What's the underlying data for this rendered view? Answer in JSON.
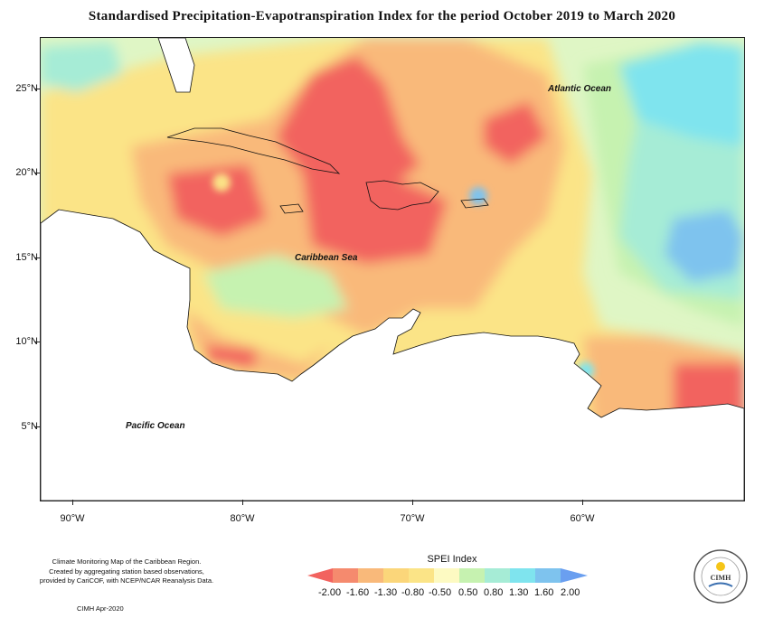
{
  "title": "Standardised Precipitation-Evapotranspiration Index for the period October 2019 to March 2020",
  "labels": {
    "atlantic": "Atlantic Ocean",
    "caribbean": "Caribbean Sea",
    "pacific": "Pacific Ocean"
  },
  "lat_ticks": [
    "25°N",
    "20°N",
    "15°N",
    "10°N",
    "5°N"
  ],
  "lon_ticks": [
    "90°W",
    "80°W",
    "70°W",
    "60°W"
  ],
  "legend": {
    "title": "SPEI Index",
    "values": [
      "-2.00",
      "-1.60",
      "-1.30",
      "-0.80",
      "-0.50",
      "0.50",
      "0.80",
      "1.30",
      "1.60",
      "2.00"
    ],
    "colors": [
      "#f2635f",
      "#f58a6e",
      "#f9b97a",
      "#fbe487",
      "#fdfac2",
      "#c6f2b0",
      "#a6ecd6",
      "#7fe4ee",
      "#7ec3ee",
      "#6a9ff0"
    ]
  },
  "credits": {
    "line1": "Climate Monitoring Map of the Caribbean Region.",
    "line2": "Created by aggregating station based observations,",
    "line3": "provided by CariCOF, with NCEP/NCAR Reanalysis Data.",
    "date": "CIMH Apr-2020"
  },
  "logo": {
    "text": "CIMH"
  }
}
